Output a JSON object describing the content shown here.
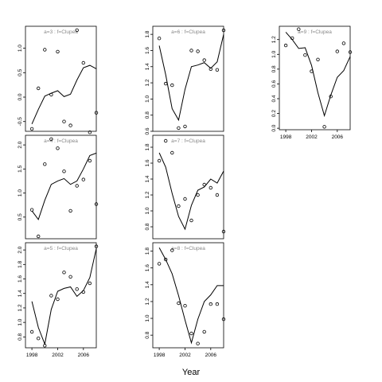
{
  "chart_data": {
    "type": "scatter",
    "xlabel": "Year",
    "x_ticks": [
      1998,
      2002,
      2006
    ],
    "x_range": [
      1997,
      2008
    ],
    "panels": [
      {
        "label": "a=3  :  f=Clupea",
        "ylim": [
          -0.7,
          1.45
        ],
        "yticks": [
          "-0.5",
          "0.0",
          "0.5",
          "1.0"
        ],
        "ytick_values": [
          -0.5,
          0.0,
          0.5,
          1.0
        ],
        "show_x_axis": false,
        "points": [
          [
            1998,
            -0.65
          ],
          [
            1999,
            0.18
          ],
          [
            2000,
            0.97
          ],
          [
            2001,
            0.05
          ],
          [
            2002,
            0.93
          ],
          [
            2003,
            -0.5
          ],
          [
            2004,
            -0.58
          ],
          [
            2005,
            1.37
          ],
          [
            2006,
            0.7
          ],
          [
            2007,
            -0.72
          ],
          [
            2008,
            -0.32
          ]
        ],
        "fitted": [
          [
            1998,
            -0.55
          ],
          [
            1999,
            -0.25
          ],
          [
            2000,
            0.02
          ],
          [
            2001,
            0.08
          ],
          [
            2002,
            0.13
          ],
          [
            2003,
            0.01
          ],
          [
            2004,
            0.06
          ],
          [
            2005,
            0.35
          ],
          [
            2006,
            0.6
          ],
          [
            2007,
            0.65
          ],
          [
            2008,
            0.58
          ]
        ]
      },
      {
        "label": "a=4  :  f=Clupea",
        "ylim": [
          0.05,
          2.2
        ],
        "yticks": [
          "0.5",
          "1.0",
          "1.5",
          "2.0"
        ],
        "ytick_values": [
          0.5,
          1.0,
          1.5,
          2.0
        ],
        "show_x_axis": false,
        "points": [
          [
            1998,
            0.65
          ],
          [
            1999,
            0.1
          ],
          [
            2000,
            1.6
          ],
          [
            2001,
            2.12
          ],
          [
            2002,
            1.93
          ],
          [
            2003,
            1.45
          ],
          [
            2004,
            0.63
          ],
          [
            2005,
            1.15
          ],
          [
            2006,
            1.28
          ],
          [
            2007,
            1.67
          ],
          [
            2008,
            0.77
          ]
        ],
        "fitted": [
          [
            1998,
            0.63
          ],
          [
            1999,
            0.45
          ],
          [
            2000,
            0.85
          ],
          [
            2001,
            1.18
          ],
          [
            2002,
            1.25
          ],
          [
            2003,
            1.3
          ],
          [
            2004,
            1.18
          ],
          [
            2005,
            1.25
          ],
          [
            2006,
            1.5
          ],
          [
            2007,
            1.78
          ],
          [
            2008,
            1.83
          ]
        ]
      },
      {
        "label": "a=5  :  f=Clupea",
        "ylim": [
          0.65,
          2.1
        ],
        "yticks": [
          "0.8",
          "1.0",
          "1.2",
          "1.4",
          "1.6",
          "1.8",
          "2.0"
        ],
        "ytick_values": [
          0.8,
          1.0,
          1.2,
          1.4,
          1.6,
          1.8,
          2.0
        ],
        "show_x_axis": true,
        "points": [
          [
            1998,
            0.87
          ],
          [
            1999,
            0.78
          ],
          [
            2000,
            0.68
          ],
          [
            2001,
            1.37
          ],
          [
            2002,
            1.32
          ],
          [
            2003,
            1.69
          ],
          [
            2004,
            1.63
          ],
          [
            2005,
            1.46
          ],
          [
            2006,
            1.42
          ],
          [
            2007,
            1.54
          ],
          [
            2008,
            2.05
          ]
        ],
        "fitted": [
          [
            1998,
            1.29
          ],
          [
            1999,
            0.93
          ],
          [
            2000,
            0.7
          ],
          [
            2001,
            1.18
          ],
          [
            2002,
            1.43
          ],
          [
            2003,
            1.47
          ],
          [
            2004,
            1.49
          ],
          [
            2005,
            1.36
          ],
          [
            2006,
            1.44
          ],
          [
            2007,
            1.62
          ],
          [
            2008,
            2.02
          ]
        ]
      },
      {
        "label": "a=6  :  f=Clupea",
        "ylim": [
          0.6,
          1.9
        ],
        "yticks": [
          "0.6",
          "0.8",
          "1.0",
          "1.2",
          "1.4",
          "1.6",
          "1.8"
        ],
        "ytick_values": [
          0.6,
          0.8,
          1.0,
          1.2,
          1.4,
          1.6,
          1.8
        ],
        "show_x_axis": false,
        "points": [
          [
            1998,
            1.75
          ],
          [
            1999,
            1.19
          ],
          [
            2000,
            1.17
          ],
          [
            2001,
            0.64
          ],
          [
            2002,
            0.66
          ],
          [
            2003,
            1.6
          ],
          [
            2004,
            1.59
          ],
          [
            2005,
            1.48
          ],
          [
            2006,
            1.37
          ],
          [
            2007,
            1.36
          ],
          [
            2008,
            1.85
          ]
        ],
        "fitted": [
          [
            1998,
            1.66
          ],
          [
            1999,
            1.3
          ],
          [
            2000,
            0.88
          ],
          [
            2001,
            0.74
          ],
          [
            2002,
            1.12
          ],
          [
            2003,
            1.4
          ],
          [
            2004,
            1.42
          ],
          [
            2005,
            1.45
          ],
          [
            2006,
            1.38
          ],
          [
            2007,
            1.46
          ],
          [
            2008,
            1.8
          ]
        ]
      },
      {
        "label": "a=7  :  f=Clupea",
        "ylim": [
          0.65,
          1.95
        ],
        "yticks": [
          "0.8",
          "1.0",
          "1.2",
          "1.4",
          "1.6",
          "1.8"
        ],
        "ytick_values": [
          0.8,
          1.0,
          1.2,
          1.4,
          1.6,
          1.8
        ],
        "show_x_axis": false,
        "points": [
          [
            1998,
            1.63
          ],
          [
            1999,
            1.88
          ],
          [
            2000,
            1.73
          ],
          [
            2001,
            1.06
          ],
          [
            2002,
            1.15
          ],
          [
            2003,
            0.88
          ],
          [
            2004,
            1.2
          ],
          [
            2005,
            1.33
          ],
          [
            2006,
            1.29
          ],
          [
            2007,
            1.2
          ],
          [
            2008,
            0.74
          ]
        ],
        "fitted": [
          [
            1998,
            1.73
          ],
          [
            1999,
            1.55
          ],
          [
            2000,
            1.22
          ],
          [
            2001,
            0.93
          ],
          [
            2002,
            0.77
          ],
          [
            2003,
            1.07
          ],
          [
            2004,
            1.26
          ],
          [
            2005,
            1.3
          ],
          [
            2006,
            1.4
          ],
          [
            2007,
            1.35
          ],
          [
            2008,
            1.5
          ]
        ]
      },
      {
        "label": "a=8  :  f=Clupea",
        "ylim": [
          0.65,
          1.9
        ],
        "yticks": [
          "0.8",
          "1.0",
          "1.2",
          "1.4",
          "1.6",
          "1.8"
        ],
        "ytick_values": [
          0.8,
          1.0,
          1.2,
          1.4,
          1.6,
          1.8
        ],
        "show_x_axis": true,
        "points": [
          [
            1998,
            1.65
          ],
          [
            1999,
            1.7
          ],
          [
            2000,
            1.81
          ],
          [
            2001,
            1.18
          ],
          [
            2002,
            1.15
          ],
          [
            2003,
            0.82
          ],
          [
            2004,
            0.7
          ],
          [
            2005,
            0.84
          ],
          [
            2006,
            1.17
          ],
          [
            2007,
            1.17
          ],
          [
            2008,
            0.99
          ]
        ],
        "fitted": [
          [
            1998,
            1.84
          ],
          [
            1999,
            1.7
          ],
          [
            2000,
            1.53
          ],
          [
            2001,
            1.27
          ],
          [
            2002,
            0.98
          ],
          [
            2003,
            0.71
          ],
          [
            2004,
            0.99
          ],
          [
            2005,
            1.2
          ],
          [
            2006,
            1.28
          ],
          [
            2007,
            1.39
          ],
          [
            2008,
            1.39
          ]
        ]
      },
      {
        "label": "a=9  :  f=Clupea",
        "ylim": [
          -0.02,
          1.38
        ],
        "yticks": [
          "0.0",
          "0.2",
          "0.4",
          "0.6",
          "0.8",
          "1.0",
          "1.2"
        ],
        "ytick_values": [
          0.0,
          0.2,
          0.4,
          0.6,
          0.8,
          1.0,
          1.2
        ],
        "show_x_axis": true,
        "points": [
          [
            1998,
            1.12
          ],
          [
            1999,
            1.22
          ],
          [
            2000,
            1.34
          ],
          [
            2001,
            0.99
          ],
          [
            2002,
            0.77
          ],
          [
            2003,
            0.93
          ],
          [
            2004,
            0.02
          ],
          [
            2005,
            0.43
          ],
          [
            2006,
            1.04
          ],
          [
            2007,
            1.15
          ],
          [
            2008,
            1.03
          ]
        ],
        "fitted": [
          [
            1998,
            1.3
          ],
          [
            1999,
            1.2
          ],
          [
            2000,
            1.08
          ],
          [
            2001,
            1.09
          ],
          [
            2002,
            0.85
          ],
          [
            2003,
            0.48
          ],
          [
            2004,
            0.17
          ],
          [
            2005,
            0.45
          ],
          [
            2006,
            0.69
          ],
          [
            2007,
            0.78
          ],
          [
            2008,
            0.97
          ]
        ]
      }
    ]
  }
}
